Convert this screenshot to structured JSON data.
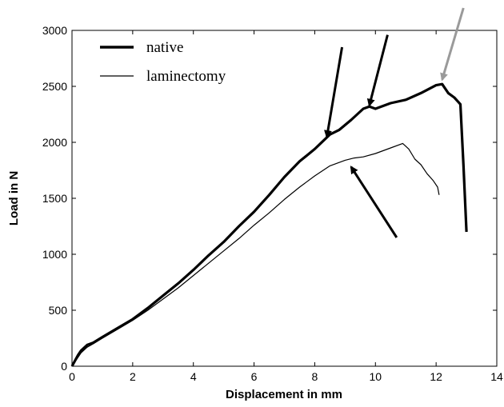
{
  "chart_data": {
    "type": "line",
    "title": "",
    "xlabel": "Displacement in mm",
    "ylabel": "Load in N",
    "xlim": [
      0,
      14
    ],
    "ylim": [
      0,
      3000
    ],
    "xticks": [
      0,
      2,
      4,
      6,
      8,
      10,
      12,
      14
    ],
    "yticks": [
      0,
      500,
      1000,
      1500,
      2000,
      2500,
      3000
    ],
    "grid": false,
    "legend_position": "top-left",
    "series": [
      {
        "name": "native",
        "color": "#000000",
        "style": "thick",
        "x": [
          0,
          0.1,
          0.2,
          0.3,
          0.5,
          0.7,
          1.0,
          1.5,
          2.0,
          2.5,
          3.0,
          3.5,
          4.0,
          4.5,
          5.0,
          5.5,
          6.0,
          6.5,
          7.0,
          7.5,
          8.0,
          8.5,
          8.8,
          9.2,
          9.6,
          9.8,
          10.0,
          10.5,
          11.0,
          11.5,
          12.0,
          12.2,
          12.4,
          12.6,
          12.8,
          12.9,
          13.0
        ],
        "values": [
          0,
          50,
          100,
          140,
          190,
          210,
          260,
          340,
          420,
          520,
          630,
          740,
          860,
          990,
          1110,
          1250,
          1380,
          1530,
          1690,
          1830,
          1940,
          2070,
          2110,
          2200,
          2300,
          2320,
          2300,
          2350,
          2380,
          2440,
          2510,
          2520,
          2440,
          2400,
          2340,
          1800,
          1200
        ]
      },
      {
        "name": "laminectomy",
        "color": "#000000",
        "style": "thin",
        "x": [
          0,
          0.1,
          0.2,
          0.3,
          0.5,
          0.7,
          1.0,
          1.5,
          2.0,
          2.5,
          3.0,
          3.5,
          4.0,
          4.5,
          5.0,
          5.5,
          6.0,
          6.5,
          7.0,
          7.5,
          8.0,
          8.5,
          9.0,
          9.3,
          9.6,
          10.0,
          10.5,
          10.9,
          11.1,
          11.3,
          11.5,
          11.7,
          11.9,
          12.05,
          12.1
        ],
        "values": [
          0,
          40,
          80,
          120,
          170,
          200,
          250,
          330,
          410,
          500,
          600,
          700,
          810,
          920,
          1030,
          1140,
          1260,
          1370,
          1490,
          1600,
          1700,
          1790,
          1840,
          1860,
          1870,
          1900,
          1950,
          1990,
          1940,
          1850,
          1800,
          1720,
          1660,
          1600,
          1530
        ]
      }
    ],
    "annotations": [
      {
        "type": "arrow",
        "color": "#000000",
        "from": [
          8.9,
          2850
        ],
        "to": [
          8.4,
          2050
        ]
      },
      {
        "type": "arrow",
        "color": "#000000",
        "from": [
          10.4,
          2960
        ],
        "to": [
          9.8,
          2330
        ]
      },
      {
        "type": "arrow",
        "color": "#000000",
        "from": [
          10.7,
          1150
        ],
        "to": [
          9.2,
          1780
        ]
      },
      {
        "type": "arrow",
        "color": "#9a9a9a",
        "from": [
          12.9,
          3200
        ],
        "to": [
          12.2,
          2560
        ]
      }
    ]
  }
}
